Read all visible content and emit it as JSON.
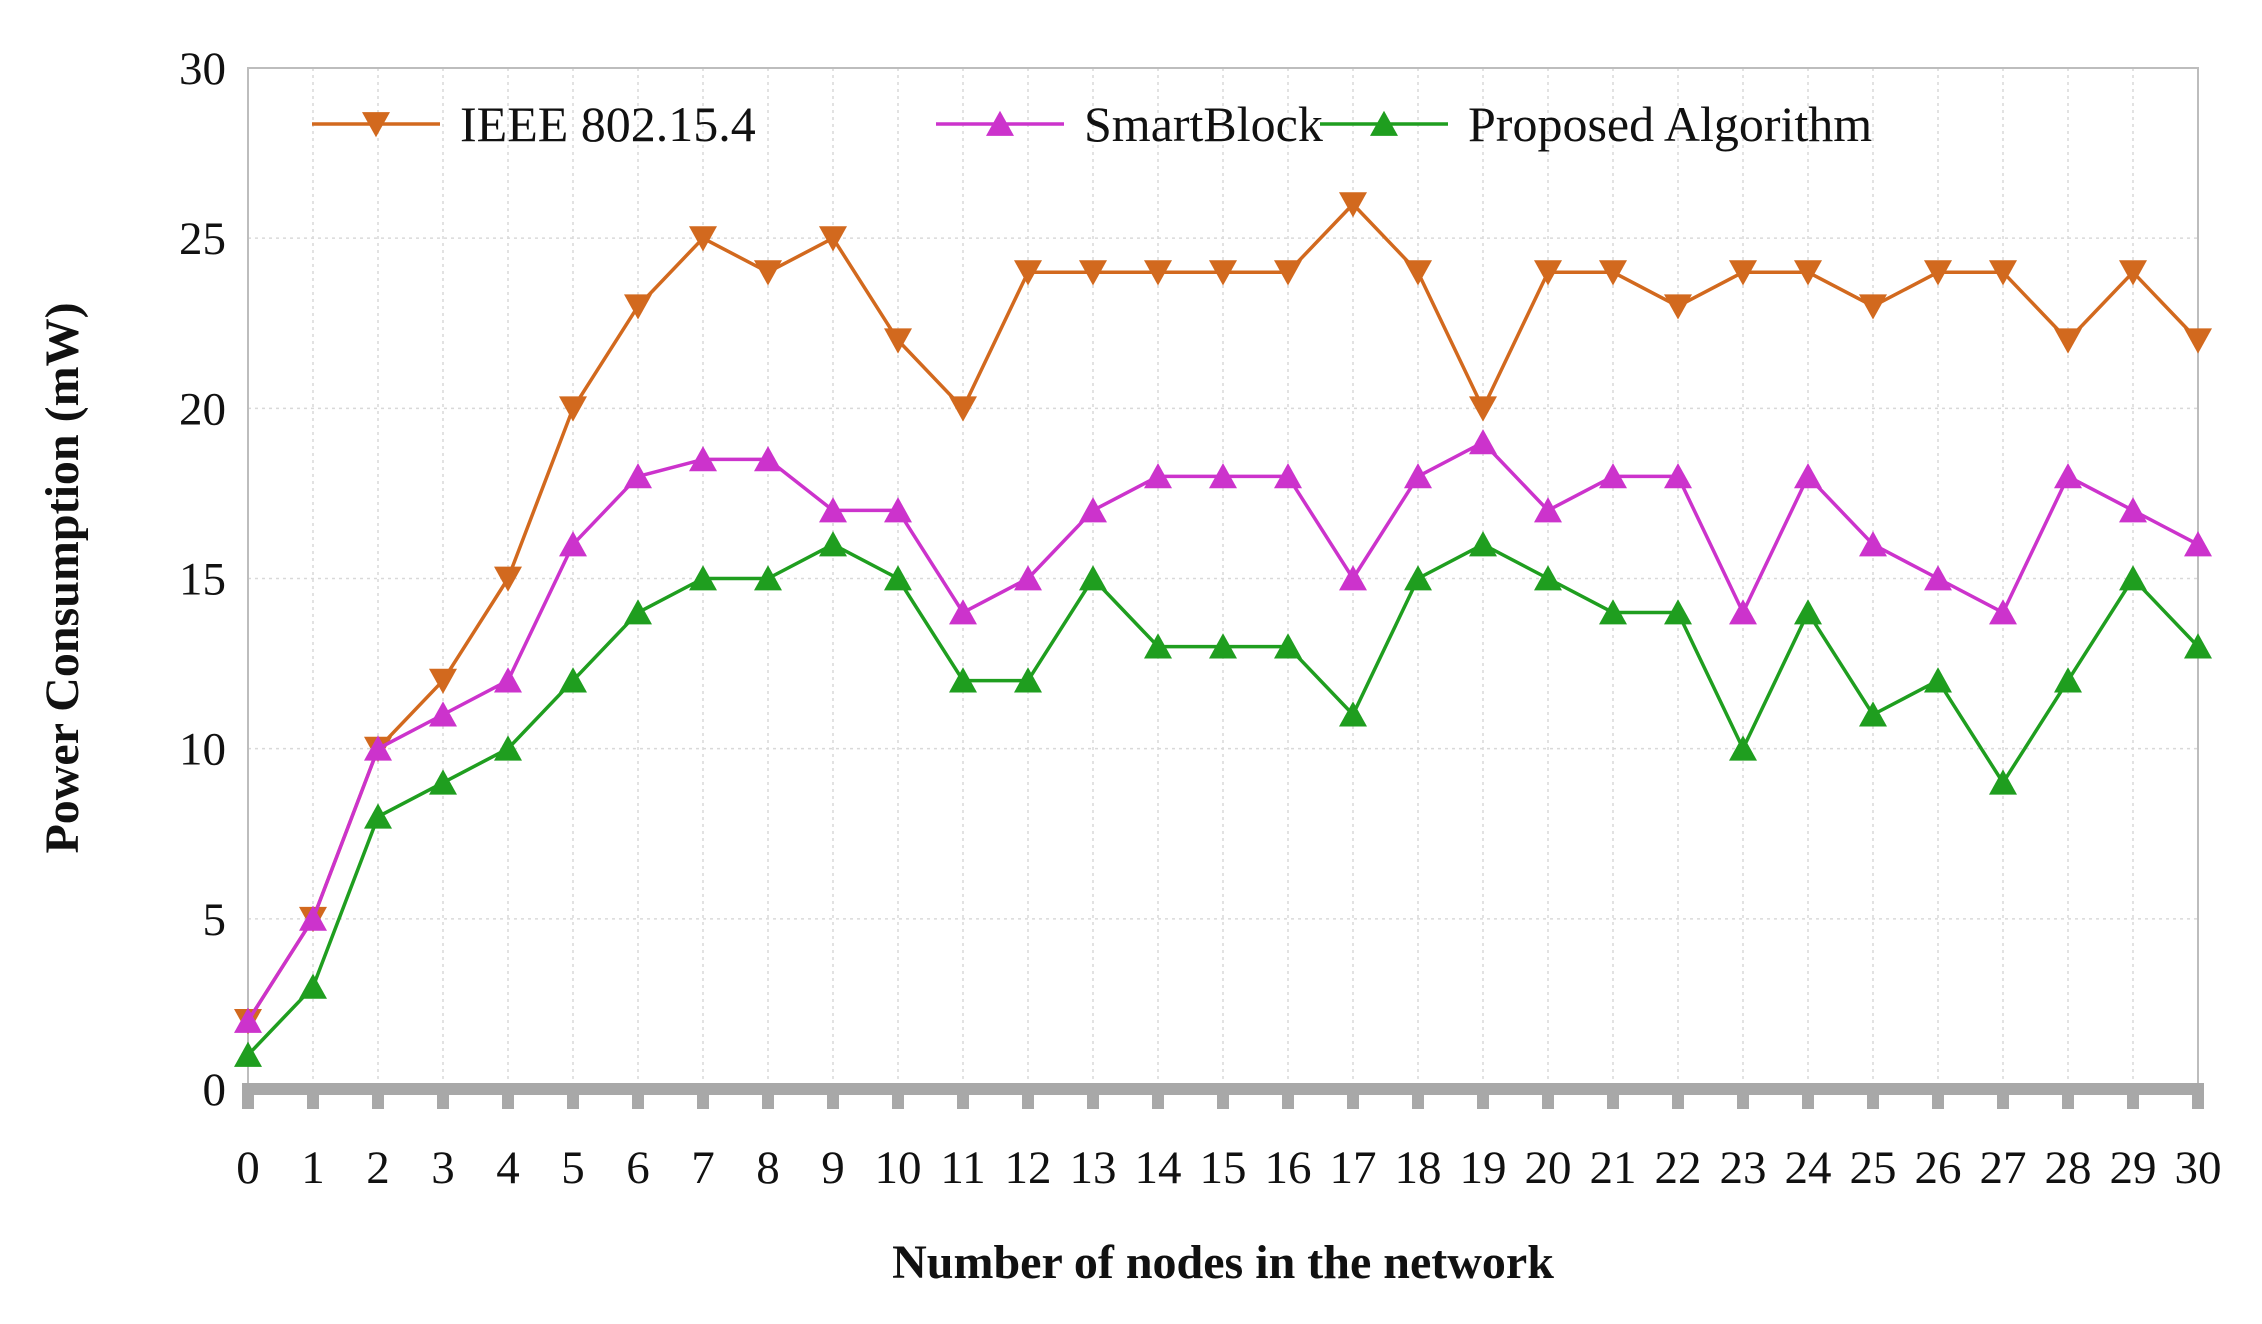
{
  "chart_data": {
    "type": "line",
    "title": "",
    "xlabel": "Number of nodes in the network",
    "ylabel": "Power Consumption (mW)",
    "xlim": [
      0,
      30
    ],
    "ylim": [
      0,
      30
    ],
    "x_ticks": [
      0,
      1,
      2,
      3,
      4,
      5,
      6,
      7,
      8,
      9,
      10,
      11,
      12,
      13,
      14,
      15,
      16,
      17,
      18,
      19,
      20,
      21,
      22,
      23,
      24,
      25,
      26,
      27,
      28,
      29,
      30
    ],
    "y_ticks": [
      0,
      5,
      10,
      15,
      20,
      25,
      30
    ],
    "grid": true,
    "legend_position": "top",
    "x": [
      0,
      1,
      2,
      3,
      4,
      5,
      6,
      7,
      8,
      9,
      10,
      11,
      12,
      13,
      14,
      15,
      16,
      17,
      18,
      19,
      20,
      21,
      22,
      23,
      24,
      25,
      26,
      27,
      28,
      29,
      30
    ],
    "series": [
      {
        "name": "IEEE 802.15.4",
        "color": "#d2691e",
        "marker": "triangle-down",
        "values": [
          2,
          5,
          10,
          12,
          15,
          20,
          23,
          25,
          24,
          25,
          22,
          20,
          24,
          24,
          24,
          24,
          24,
          26,
          24,
          20,
          24,
          24,
          23,
          24,
          24,
          23,
          24,
          24,
          22,
          24,
          22
        ]
      },
      {
        "name": "SmartBlock",
        "color": "#cc33cc",
        "marker": "triangle-up",
        "values": [
          2,
          5,
          10,
          11,
          12,
          16,
          18,
          18.5,
          18.5,
          17,
          17,
          14,
          15,
          17,
          18,
          18,
          18,
          15,
          18,
          19,
          17,
          18,
          18,
          14,
          18,
          16,
          15,
          14,
          18,
          17,
          16
        ]
      },
      {
        "name": "Proposed Algorithm",
        "color": "#1f9e1f",
        "marker": "triangle-up",
        "values": [
          1,
          3,
          8,
          9,
          10,
          12,
          14,
          15,
          15,
          16,
          15,
          12,
          12,
          15,
          13,
          13,
          13,
          11,
          15,
          16,
          15,
          14,
          14,
          10,
          14,
          11,
          12,
          9,
          12,
          15,
          13
        ]
      }
    ]
  }
}
